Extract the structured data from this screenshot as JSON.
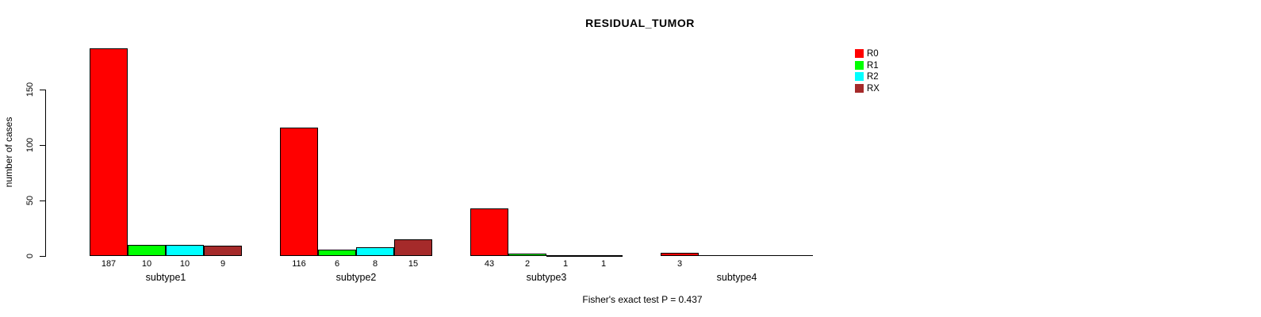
{
  "title": "RESIDUAL_TUMOR",
  "footer": "Fisher's exact test P = 0.437",
  "y_axis": {
    "label": "number of cases",
    "ticks": [
      0,
      50,
      100,
      150
    ]
  },
  "legend": {
    "items": [
      {
        "label": "R0",
        "color": "#FF0000"
      },
      {
        "label": "R1",
        "color": "#00FF00"
      },
      {
        "label": "R2",
        "color": "#00FFFF"
      },
      {
        "label": "RX",
        "color": "#A52A2A"
      }
    ]
  },
  "chart_data": {
    "type": "bar",
    "title": "RESIDUAL_TUMOR",
    "xlabel": "",
    "ylabel": "number of cases",
    "ylim": [
      0,
      190
    ],
    "yticks": [
      0,
      50,
      100,
      150
    ],
    "grid": false,
    "legend_position": "top-right",
    "categories": [
      "subtype1",
      "subtype2",
      "subtype3",
      "subtype4"
    ],
    "series": [
      {
        "name": "R0",
        "color": "#FF0000",
        "values": [
          187,
          116,
          43,
          3
        ]
      },
      {
        "name": "R1",
        "color": "#00FF00",
        "values": [
          10,
          6,
          2,
          0
        ]
      },
      {
        "name": "R2",
        "color": "#00FFFF",
        "values": [
          10,
          8,
          1,
          0
        ]
      },
      {
        "name": "RX",
        "color": "#A52A2A",
        "values": [
          9,
          15,
          1,
          0
        ]
      }
    ],
    "bar_value_labels_shown_when": "value > 0",
    "annotation": "Fisher's exact test P = 0.437"
  }
}
